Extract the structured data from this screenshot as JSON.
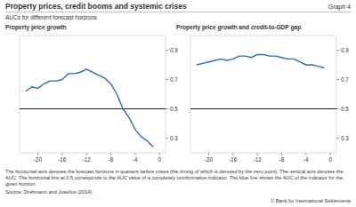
{
  "title": "Property prices, credit booms and systemic crises",
  "graph_label": "Graph 4",
  "subtitle": "AUCs for different forecast horizons",
  "notes": "The horizontal axis denotes the forecast horizons in quarters before crises (the timing of which is denoted by the zero point). The vertical axis denotes the AUC. The horizontal line at 0.5 corresponds to the AUC value of a completely uninformative indicator. The blue line shows the AUC of the indicator for the given horizon.",
  "source": "Source: Drehmann and Juselius (2014).",
  "copyright": "© Bank for International Settlements",
  "chart_data": [
    {
      "type": "line",
      "title": "Property price growth",
      "x": [
        -22,
        -21,
        -20,
        -19,
        -18,
        -17,
        -16,
        -15,
        -14,
        -13,
        -12,
        -11,
        -10,
        -9,
        -8,
        -7,
        -6,
        -5,
        -4,
        -3,
        -2,
        -1
      ],
      "values": [
        0.62,
        0.65,
        0.64,
        0.67,
        0.69,
        0.69,
        0.7,
        0.74,
        0.74,
        0.75,
        0.77,
        0.75,
        0.73,
        0.71,
        0.67,
        0.6,
        0.5,
        0.44,
        0.36,
        0.31,
        0.28,
        0.24
      ],
      "color": "#2e6db4",
      "xlim": [
        -23,
        1
      ],
      "xticks": [
        -20,
        -16,
        -12,
        -8,
        -4,
        0
      ],
      "ylim": [
        0.2,
        1.0
      ],
      "yticks": [
        0.3,
        0.5,
        0.7,
        0.9
      ],
      "hline": 0.5
    },
    {
      "type": "line",
      "title": "Property price growth and credit-to-GDP gap",
      "x": [
        -22,
        -21,
        -20,
        -19,
        -18,
        -17,
        -16,
        -15,
        -14,
        -13,
        -12,
        -11,
        -10,
        -9,
        -8,
        -7,
        -6,
        -5,
        -4,
        -3,
        -2,
        -1
      ],
      "values": [
        0.8,
        0.81,
        0.82,
        0.83,
        0.84,
        0.83,
        0.84,
        0.86,
        0.86,
        0.85,
        0.87,
        0.87,
        0.86,
        0.86,
        0.85,
        0.84,
        0.84,
        0.82,
        0.8,
        0.8,
        0.79,
        0.78
      ],
      "color": "#2e6db4",
      "xlim": [
        -23,
        1
      ],
      "xticks": [
        -20,
        -16,
        -12,
        -8,
        -4,
        0
      ],
      "ylim": [
        0.2,
        1.0
      ],
      "yticks": [
        0.3,
        0.5,
        0.7,
        0.9
      ],
      "hline": 0.5
    }
  ]
}
